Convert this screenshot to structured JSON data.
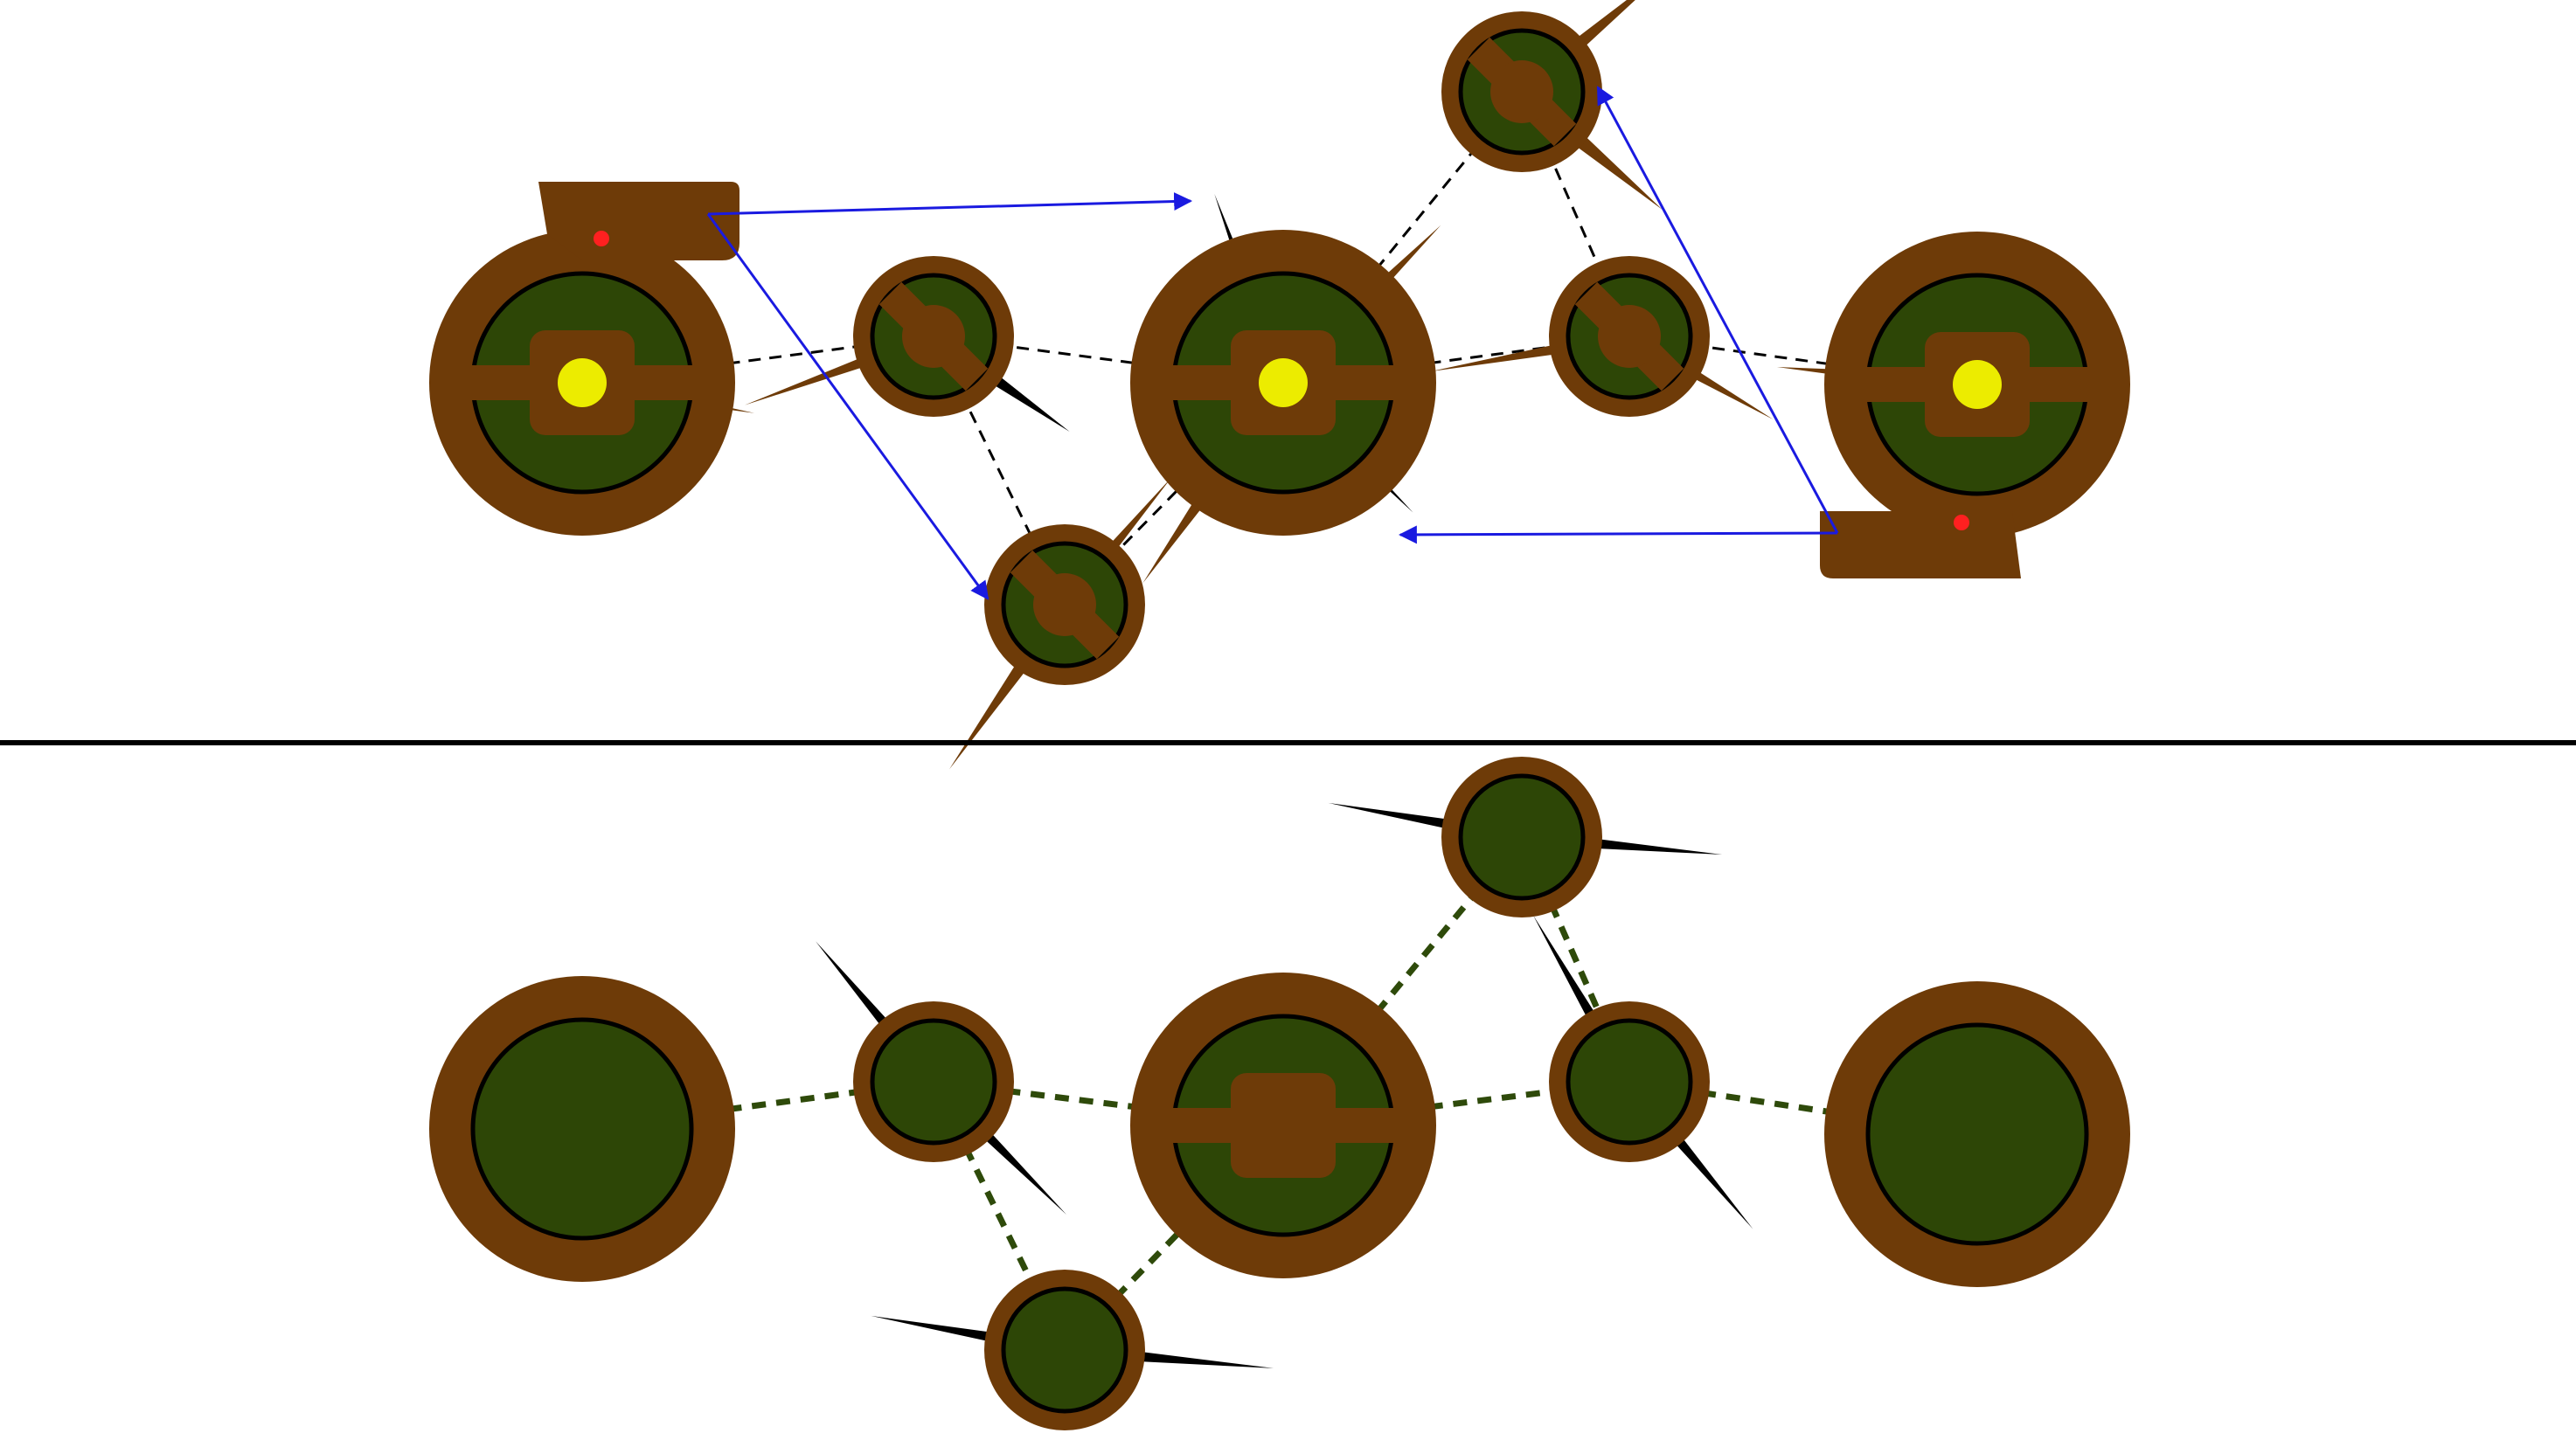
{
  "colors": {
    "background": "#ffffff",
    "rim": "#6e3b08",
    "center": "#2d4606",
    "ring": "#000000",
    "hub": "#ecec00",
    "marker": "#ff2020",
    "arrow": "#1a1ae0",
    "dashed_link_top": "#000000",
    "dashed_link_bottom": "#2e4a0a",
    "divider": "#000000"
  },
  "top_panel": {
    "nodes": [
      {
        "id": "n1",
        "kind": "large",
        "hub": true,
        "mount": "top"
      },
      {
        "id": "n2",
        "kind": "small",
        "bar": true
      },
      {
        "id": "n3",
        "kind": "small",
        "bar": true
      },
      {
        "id": "n4",
        "kind": "large",
        "hub": true
      },
      {
        "id": "n5",
        "kind": "small",
        "bar": true
      },
      {
        "id": "n6",
        "kind": "small",
        "bar": true
      },
      {
        "id": "n7",
        "kind": "large",
        "hub": true,
        "mount": "bottom"
      }
    ],
    "links": [
      [
        "n1",
        "n2"
      ],
      [
        "n2",
        "n4"
      ],
      [
        "n2",
        "n3"
      ],
      [
        "n3",
        "n4"
      ],
      [
        "n4",
        "n5"
      ],
      [
        "n4",
        "n6"
      ],
      [
        "n5",
        "n6"
      ],
      [
        "n6",
        "n7"
      ]
    ],
    "arrows": [
      [
        "n1",
        "n4"
      ],
      [
        "n1",
        "n3"
      ],
      [
        "n7",
        "n5"
      ],
      [
        "n7",
        "n4"
      ]
    ]
  },
  "bottom_panel": {
    "nodes": [
      {
        "id": "m1",
        "kind": "large"
      },
      {
        "id": "m2",
        "kind": "small"
      },
      {
        "id": "m3",
        "kind": "small"
      },
      {
        "id": "m4",
        "kind": "large",
        "bar": true
      },
      {
        "id": "m5",
        "kind": "small"
      },
      {
        "id": "m6",
        "kind": "small"
      },
      {
        "id": "m7",
        "kind": "large"
      }
    ],
    "links": [
      [
        "m1",
        "m2"
      ],
      [
        "m2",
        "m4"
      ],
      [
        "m2",
        "m3"
      ],
      [
        "m3",
        "m4"
      ],
      [
        "m4",
        "m5"
      ],
      [
        "m4",
        "m6"
      ],
      [
        "m5",
        "m6"
      ],
      [
        "m6",
        "m7"
      ]
    ]
  }
}
